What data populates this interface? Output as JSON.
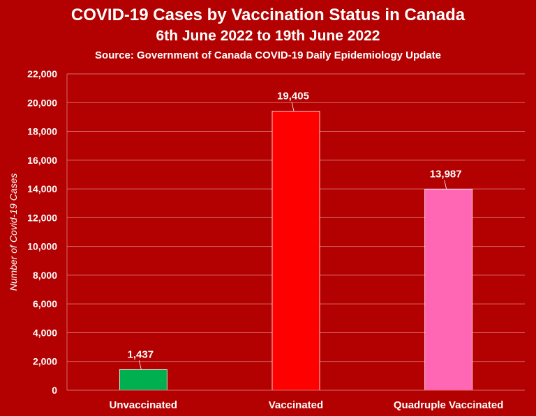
{
  "chart_data": {
    "type": "bar",
    "title": "COVID-19 Cases by Vaccination Status in Canada",
    "subtitle": "6th June 2022 to 19th June 2022",
    "source": "Source: Government of Canada COVID-19 Daily Epidemiology Update",
    "xlabel": "",
    "ylabel": "Number of Covid-19 Cases",
    "categories": [
      "Unvaccinated",
      "Vaccinated",
      "Quadruple Vaccinated"
    ],
    "values": [
      1437,
      19405,
      13987
    ],
    "data_labels": [
      "1,437",
      "19,405",
      "13,987"
    ],
    "bar_colors": [
      "#00b050",
      "#ff0000",
      "#ff66b3"
    ],
    "ylim": [
      0,
      22000
    ],
    "y_ticks": [
      0,
      2000,
      4000,
      6000,
      8000,
      10000,
      12000,
      14000,
      16000,
      18000,
      20000,
      22000
    ],
    "y_tick_labels": [
      "0",
      "2,000",
      "4,000",
      "6,000",
      "8,000",
      "10,000",
      "12,000",
      "14,000",
      "16,000",
      "18,000",
      "20,000",
      "22,000"
    ],
    "grid": true,
    "legend": "none",
    "background_color": "#b30000",
    "grid_color": "#d96b6b"
  }
}
